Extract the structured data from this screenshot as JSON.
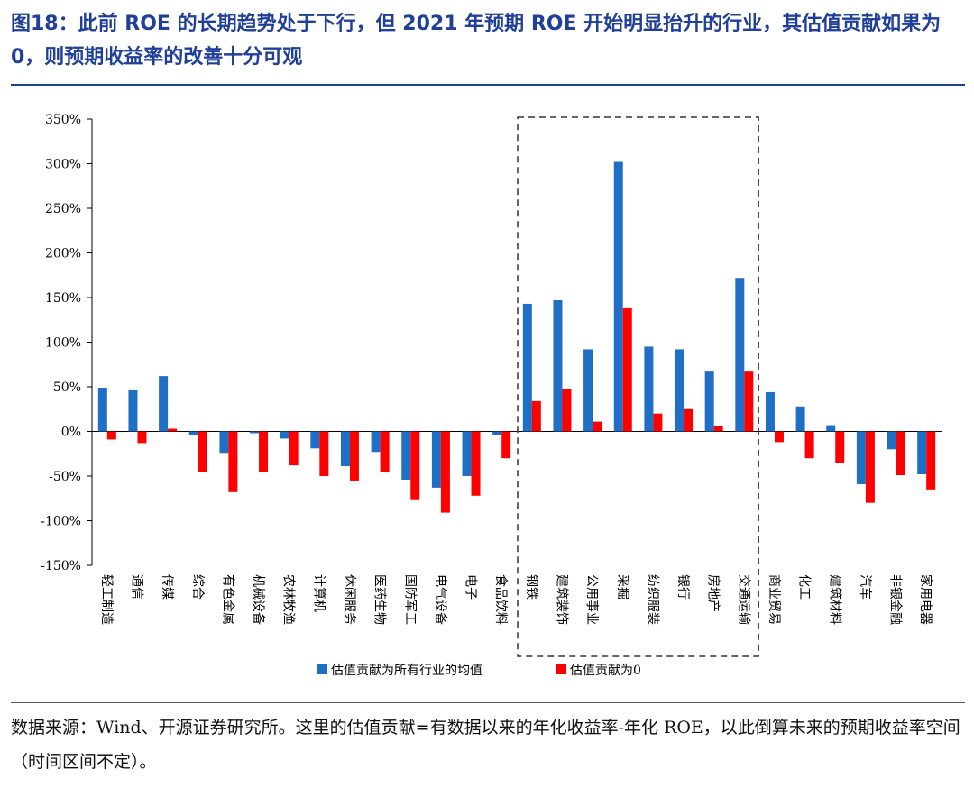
{
  "title": "图18：此前 ROE 的长期趋势处于下行，但 2021 年预期 ROE 开始明显抬升的行业，其估值贡献如果为 0，则预期收益率的改善十分可观",
  "footer": "数据来源：Wind、开源证券研究所。这里的估值贡献=有数据以来的年化收益率-年化 ROE，以此倒算未来的预期收益率空间（时间区间不定）。",
  "colors": {
    "series1": "#1f6fc6",
    "series2": "#ff0000",
    "title": "#1f3f99"
  },
  "chart_data": {
    "type": "bar",
    "title": "",
    "xlabel": "",
    "ylabel": "",
    "ylim": [
      -150,
      350
    ],
    "yticks": [
      -150,
      -100,
      -50,
      0,
      50,
      100,
      150,
      200,
      250,
      300,
      350
    ],
    "ytick_labels": [
      "-150%",
      "-100%",
      "-50%",
      "0%",
      "50%",
      "100%",
      "150%",
      "200%",
      "250%",
      "300%",
      "350%"
    ],
    "legend_position": "bottom",
    "highlight_box": {
      "from_category": "钢铁",
      "to_category": "交通运输",
      "style": "dashed"
    },
    "categories": [
      "轻工制造",
      "通信",
      "传媒",
      "综合",
      "有色金属",
      "机械设备",
      "农林牧渔",
      "计算机",
      "休闲服务",
      "医药生物",
      "国防军工",
      "电气设备",
      "电子",
      "食品饮料",
      "钢铁",
      "建筑装饰",
      "公用事业",
      "采掘",
      "纺织服装",
      "银行",
      "房地产",
      "交通运输",
      "商业贸易",
      "化工",
      "建筑材料",
      "汽车",
      "非银金融",
      "家用电器"
    ],
    "series": [
      {
        "name": "估值贡献为所有行业的均值",
        "color": "#1f6fc6",
        "values": [
          49,
          46,
          62,
          -4,
          -24,
          -2,
          -8,
          -19,
          -39,
          -23,
          -54,
          -63,
          -50,
          -4,
          143,
          147,
          92,
          302,
          95,
          92,
          67,
          172,
          44,
          28,
          7,
          -59,
          -20,
          -48
        ]
      },
      {
        "name": "估值贡献为0",
        "color": "#ff0000",
        "values": [
          -9,
          -13,
          3,
          -45,
          -68,
          -45,
          -38,
          -50,
          -55,
          -46,
          -77,
          -91,
          -72,
          -30,
          34,
          48,
          11,
          138,
          20,
          25,
          6,
          67,
          -12,
          -30,
          -35,
          -80,
          -49,
          -65
        ]
      }
    ]
  }
}
